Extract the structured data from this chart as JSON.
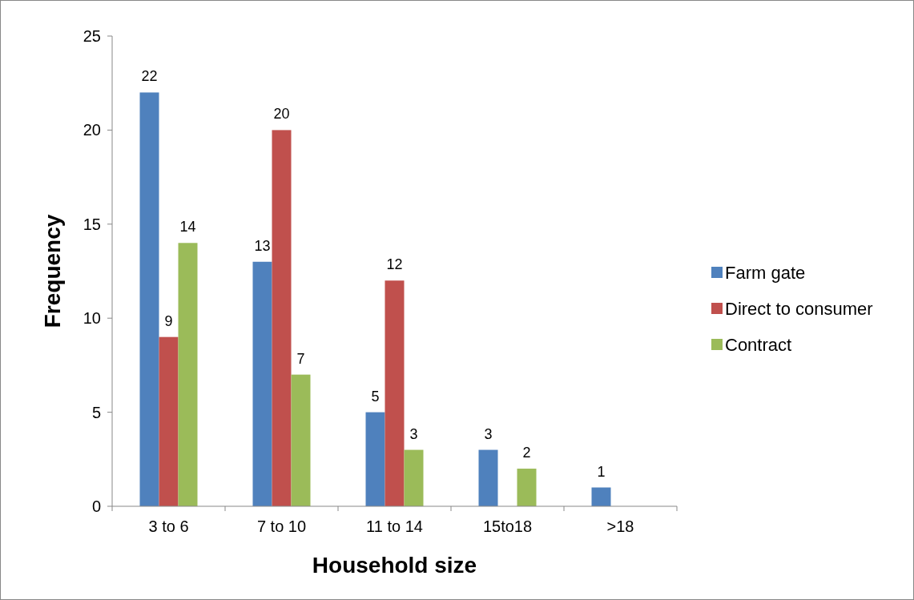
{
  "chart_data": {
    "type": "bar",
    "xlabel": "Household size",
    "ylabel": "Frequency",
    "categories": [
      "3 to 6",
      "7 to 10",
      "11 to 14",
      "15to18",
      ">18"
    ],
    "series": [
      {
        "name": "Farm gate",
        "color": "#4f81bd",
        "values": [
          22,
          13,
          5,
          3,
          1
        ]
      },
      {
        "name": "Direct to consumer",
        "color": "#c0504d",
        "values": [
          9,
          20,
          12,
          null,
          null
        ]
      },
      {
        "name": "Contract",
        "color": "#9bbb59",
        "values": [
          14,
          7,
          3,
          2,
          null
        ]
      }
    ],
    "ylim": [
      0,
      25
    ],
    "yticks": [
      0,
      5,
      10,
      15,
      20,
      25
    ],
    "data_labels": true,
    "grid": false,
    "legend": "right"
  }
}
